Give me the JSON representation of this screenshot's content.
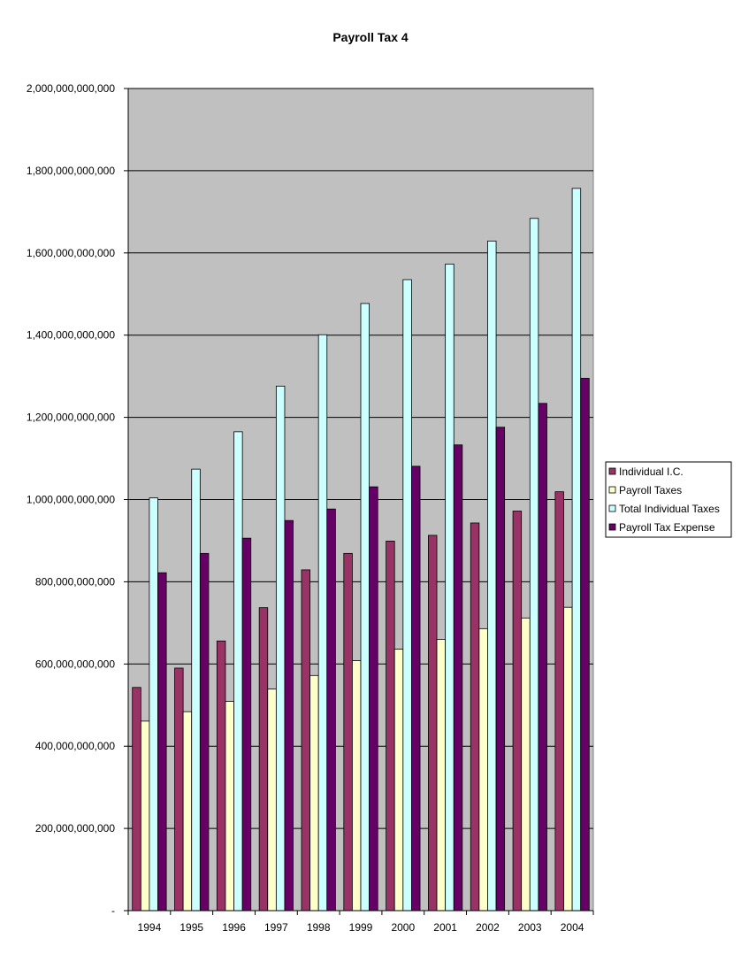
{
  "chart_data": {
    "type": "bar",
    "title": "Payroll Tax 4",
    "xlabel": "",
    "ylabel": "",
    "categories": [
      "1994",
      "1995",
      "1996",
      "1997",
      "1998",
      "1999",
      "2000",
      "2001",
      "2002",
      "2003",
      "2004"
    ],
    "ylim": [
      0,
      2000000000000
    ],
    "yticks": [
      0,
      200000000000,
      400000000000,
      600000000000,
      800000000000,
      1000000000000,
      1200000000000,
      1400000000000,
      1600000000000,
      1800000000000,
      2000000000000
    ],
    "ytick_labels": [
      "-",
      "200,000,000,000",
      "400,000,000,000",
      "600,000,000,000",
      "800,000,000,000",
      "1,000,000,000,000",
      "1,200,000,000,000",
      "1,400,000,000,000",
      "1,600,000,000,000",
      "1,800,000,000,000",
      "2,000,000,000,000"
    ],
    "grid": true,
    "legend_position": "right",
    "plot_background": "#c0c0c0",
    "series": [
      {
        "name": "Individual I.C.",
        "color": "#993366",
        "values": [
          543000000000,
          590000000000,
          656000000000,
          737000000000,
          829000000000,
          869000000000,
          899000000000,
          913000000000,
          943000000000,
          972000000000,
          1019000000000
        ]
      },
      {
        "name": "Payroll Taxes",
        "color": "#ffffcc",
        "values": [
          461000000000,
          484000000000,
          509000000000,
          539000000000,
          572000000000,
          608000000000,
          636000000000,
          660000000000,
          686000000000,
          712000000000,
          738000000000
        ]
      },
      {
        "name": "Total Individual Taxes",
        "color": "#ccffff",
        "values": [
          1004000000000,
          1074000000000,
          1165000000000,
          1276000000000,
          1401000000000,
          1477000000000,
          1535000000000,
          1573000000000,
          1629000000000,
          1684000000000,
          1757000000000
        ]
      },
      {
        "name": "Payroll Tax Expense",
        "color": "#660066",
        "values": [
          822000000000,
          869000000000,
          906000000000,
          949000000000,
          977000000000,
          1031000000000,
          1081000000000,
          1133000000000,
          1176000000000,
          1234000000000,
          1295000000000
        ]
      }
    ]
  }
}
